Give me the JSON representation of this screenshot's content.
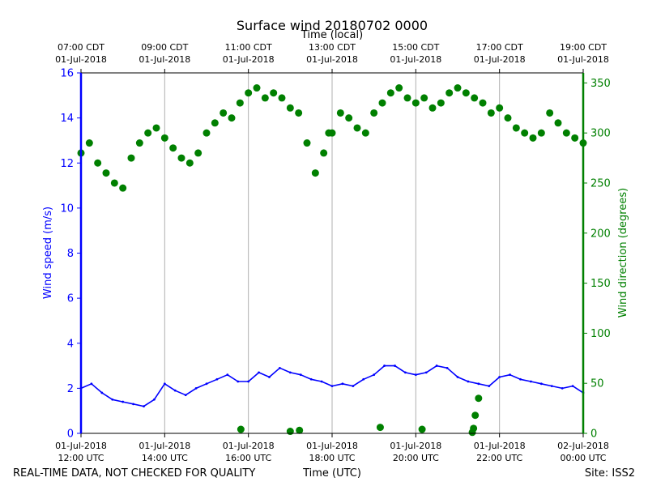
{
  "chart_data": {
    "type": "scatter",
    "title": "Surface wind 20180702 0000",
    "top_axis_label": "Time (local)",
    "xlabel": "Time (UTC)",
    "ylabel_left": "Wind speed (m/s)",
    "ylabel_right": "Wind direction (degrees)",
    "footer_left": "REAL-TIME DATA, NOT CHECKED FOR QUALITY",
    "footer_right": "Site: ISS2",
    "x_range_hours_utc": [
      12,
      24
    ],
    "ylim_left": [
      0,
      16
    ],
    "ylim_right": [
      0,
      360
    ],
    "grid": "vertical",
    "bottom_ticks": [
      {
        "hour": 12,
        "date": "01-Jul-2018",
        "time": "12:00 UTC"
      },
      {
        "hour": 14,
        "date": "01-Jul-2018",
        "time": "14:00 UTC"
      },
      {
        "hour": 16,
        "date": "01-Jul-2018",
        "time": "16:00 UTC"
      },
      {
        "hour": 18,
        "date": "01-Jul-2018",
        "time": "18:00 UTC"
      },
      {
        "hour": 20,
        "date": "01-Jul-2018",
        "time": "20:00 UTC"
      },
      {
        "hour": 22,
        "date": "01-Jul-2018",
        "time": "22:00 UTC"
      },
      {
        "hour": 24,
        "date": "02-Jul-2018",
        "time": "00:00 UTC"
      }
    ],
    "top_ticks": [
      {
        "hour": 12,
        "time": "07:00 CDT",
        "date": "01-Jul-2018"
      },
      {
        "hour": 14,
        "time": "09:00 CDT",
        "date": "01-Jul-2018"
      },
      {
        "hour": 16,
        "time": "11:00 CDT",
        "date": "01-Jul-2018"
      },
      {
        "hour": 18,
        "time": "13:00 CDT",
        "date": "01-Jul-2018"
      },
      {
        "hour": 20,
        "time": "15:00 CDT",
        "date": "01-Jul-2018"
      },
      {
        "hour": 22,
        "time": "17:00 CDT",
        "date": "01-Jul-2018"
      },
      {
        "hour": 24,
        "time": "19:00 CDT",
        "date": "01-Jul-2018"
      }
    ],
    "left_ticks": [
      0,
      2,
      4,
      6,
      8,
      10,
      12,
      14,
      16
    ],
    "right_ticks": [
      0,
      50,
      100,
      150,
      200,
      250,
      300,
      350
    ],
    "colors": {
      "speed": "#0000ff",
      "direction": "#008000",
      "grid": "#b0b0b0",
      "axis": "#000000"
    },
    "series": [
      {
        "name": "Wind speed",
        "axis": "left",
        "style": "line",
        "x": [
          12.0,
          12.25,
          12.5,
          12.75,
          13.0,
          13.25,
          13.5,
          13.75,
          14.0,
          14.25,
          14.5,
          14.75,
          15.0,
          15.25,
          15.5,
          15.75,
          16.0,
          16.25,
          16.5,
          16.75,
          17.0,
          17.25,
          17.5,
          17.75,
          18.0,
          18.25,
          18.5,
          18.75,
          19.0,
          19.25,
          19.5,
          19.75,
          20.0,
          20.25,
          20.5,
          20.75,
          21.0,
          21.25,
          21.5,
          21.75,
          22.0,
          22.25,
          22.5,
          22.75,
          23.0,
          23.25,
          23.5,
          23.75,
          24.0
        ],
        "y": [
          2.0,
          2.2,
          1.8,
          1.5,
          1.4,
          1.3,
          1.2,
          1.5,
          2.2,
          1.9,
          1.7,
          2.0,
          2.2,
          2.4,
          2.6,
          2.3,
          2.3,
          2.7,
          2.5,
          2.9,
          2.7,
          2.6,
          2.4,
          2.3,
          2.1,
          2.2,
          2.1,
          2.4,
          2.6,
          3.0,
          3.0,
          2.7,
          2.6,
          2.7,
          3.0,
          2.9,
          2.5,
          2.3,
          2.2,
          2.1,
          2.5,
          2.6,
          2.4,
          2.3,
          2.2,
          2.1,
          2.0,
          2.1,
          1.8
        ]
      },
      {
        "name": "Wind direction",
        "axis": "right",
        "style": "markers",
        "x": [
          12.0,
          12.2,
          12.4,
          12.6,
          12.8,
          13.0,
          13.2,
          13.4,
          13.6,
          13.8,
          14.0,
          14.2,
          14.4,
          14.6,
          14.8,
          15.0,
          15.2,
          15.4,
          15.6,
          15.8,
          16.0,
          16.2,
          16.4,
          16.6,
          16.8,
          17.0,
          17.2,
          17.4,
          17.6,
          17.8,
          17.92,
          18.0,
          18.2,
          18.4,
          18.6,
          18.8,
          19.0,
          19.2,
          19.4,
          19.6,
          19.8,
          20.0,
          20.2,
          20.4,
          20.6,
          20.8,
          21.0,
          21.2,
          21.4,
          21.6,
          21.8,
          22.0,
          22.2,
          22.4,
          22.6,
          22.8,
          23.0,
          23.2,
          23.4,
          23.6,
          23.8,
          24.0,
          15.82,
          17.0,
          17.22,
          19.15,
          20.15,
          21.35,
          21.5,
          21.42,
          21.38
        ],
        "y": [
          280,
          290,
          270,
          260,
          250,
          245,
          275,
          290,
          300,
          305,
          295,
          285,
          275,
          270,
          280,
          300,
          310,
          320,
          315,
          330,
          340,
          345,
          335,
          340,
          335,
          325,
          320,
          290,
          260,
          280,
          300,
          300,
          320,
          315,
          305,
          300,
          320,
          330,
          340,
          345,
          335,
          330,
          335,
          325,
          330,
          340,
          345,
          340,
          335,
          330,
          320,
          325,
          315,
          305,
          300,
          295,
          300,
          320,
          310,
          300,
          295,
          290,
          4,
          2,
          3,
          6,
          4,
          1,
          35,
          18,
          5
        ]
      }
    ]
  }
}
